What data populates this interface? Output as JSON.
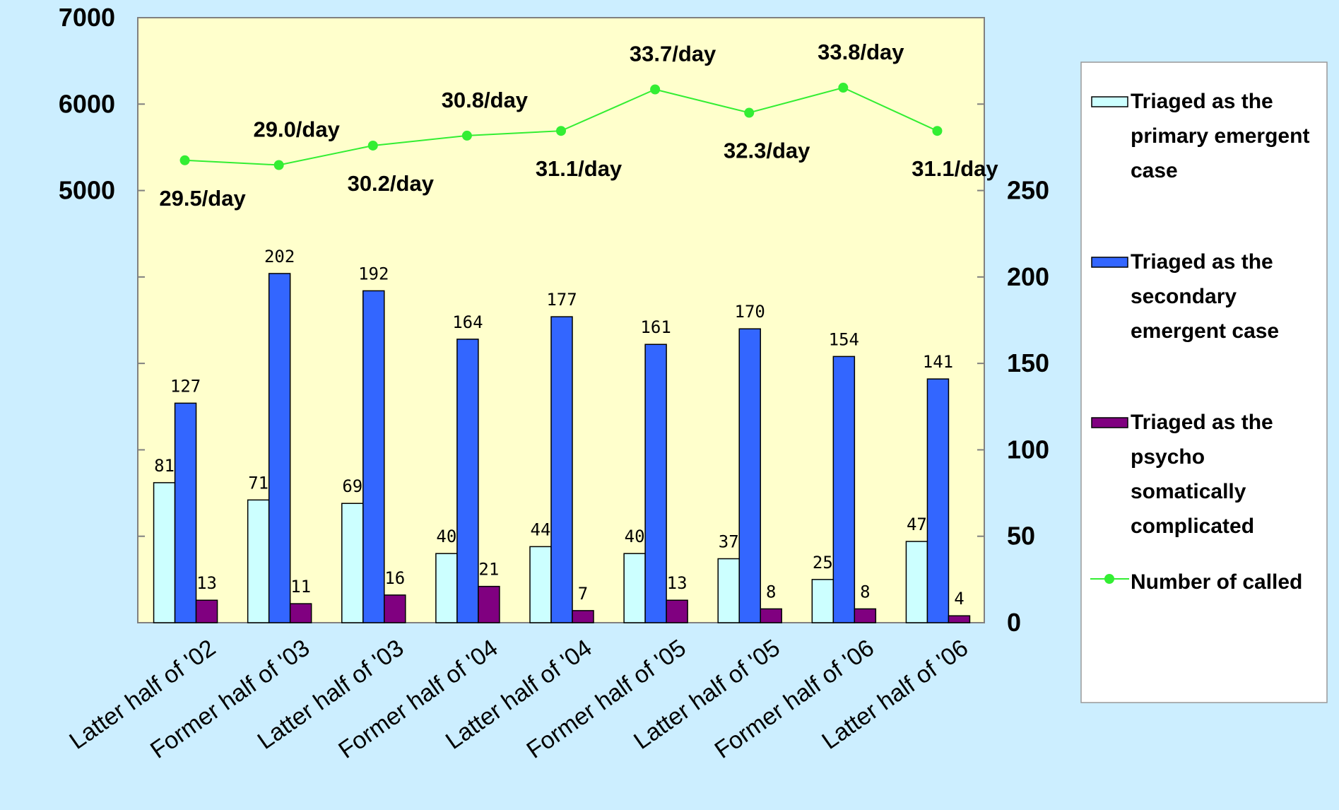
{
  "chart_data": {
    "type": "bar",
    "categories": [
      "Latter half of '02",
      "Former half of '03",
      "Latter half of '03",
      "Former half of '04",
      "Latter half of '04",
      "Former half of '05",
      "Latter half of '05",
      "Former half of '06",
      "Latter half of '06"
    ],
    "series": [
      {
        "name": "Triaged as the primary emergent case",
        "name_lines": [
          "Triaged as the",
          "primary emergent",
          "case"
        ],
        "type": "bar",
        "axis": "right",
        "color": "#ccffff",
        "values": [
          81,
          71,
          69,
          40,
          44,
          40,
          37,
          25,
          47
        ]
      },
      {
        "name": "Triaged as the secondary emergent case",
        "name_lines": [
          "Triaged as the",
          "secondary",
          "emergent case"
        ],
        "type": "bar",
        "axis": "right",
        "color": "#3366ff",
        "values": [
          127,
          202,
          192,
          164,
          177,
          161,
          170,
          154,
          141
        ]
      },
      {
        "name": "Triaged as the psycho somatically complicated",
        "name_lines": [
          "Triaged as the",
          "psycho",
          "somatically",
          "complicated"
        ],
        "type": "bar",
        "axis": "right",
        "color": "#800080",
        "values": [
          13,
          11,
          16,
          21,
          7,
          13,
          8,
          8,
          4
        ]
      },
      {
        "name": "Number of called",
        "name_lines": [
          "Number of called"
        ],
        "type": "line",
        "axis": "left",
        "color": "#33ee33",
        "values": [
          5350,
          5295,
          5520,
          5635,
          5690,
          6170,
          5900,
          6190,
          5690
        ],
        "labels": [
          "29.5/day",
          "29.0/day",
          "30.2/day",
          "30.8/day",
          "31.1/day",
          "33.7/day",
          "32.3/day",
          "33.8/day",
          "31.1/day"
        ],
        "label_position": [
          "below",
          "above",
          "below",
          "above",
          "below",
          "above",
          "below",
          "above",
          "below"
        ]
      }
    ],
    "y_left": {
      "min": 0,
      "max": 7000,
      "ticks": [
        5000,
        6000,
        7000
      ]
    },
    "y_right": {
      "min": 0,
      "max": 350,
      "ticks": [
        0,
        50,
        100,
        150,
        200,
        250
      ]
    },
    "plot_background": "#ffffcc",
    "legend_placement": "right"
  }
}
